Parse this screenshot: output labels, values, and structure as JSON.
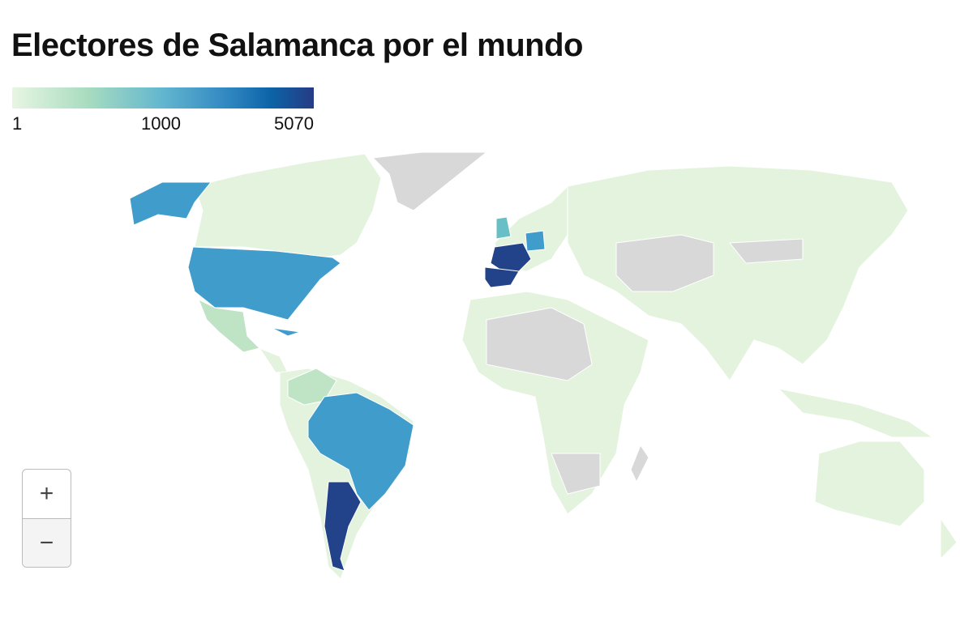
{
  "title": "Electores de Salamanca por el mundo",
  "legend": {
    "min_label": "1",
    "mid_label": "1000",
    "max_label": "5070"
  },
  "zoom": {
    "in": "+",
    "out": "−"
  }
}
